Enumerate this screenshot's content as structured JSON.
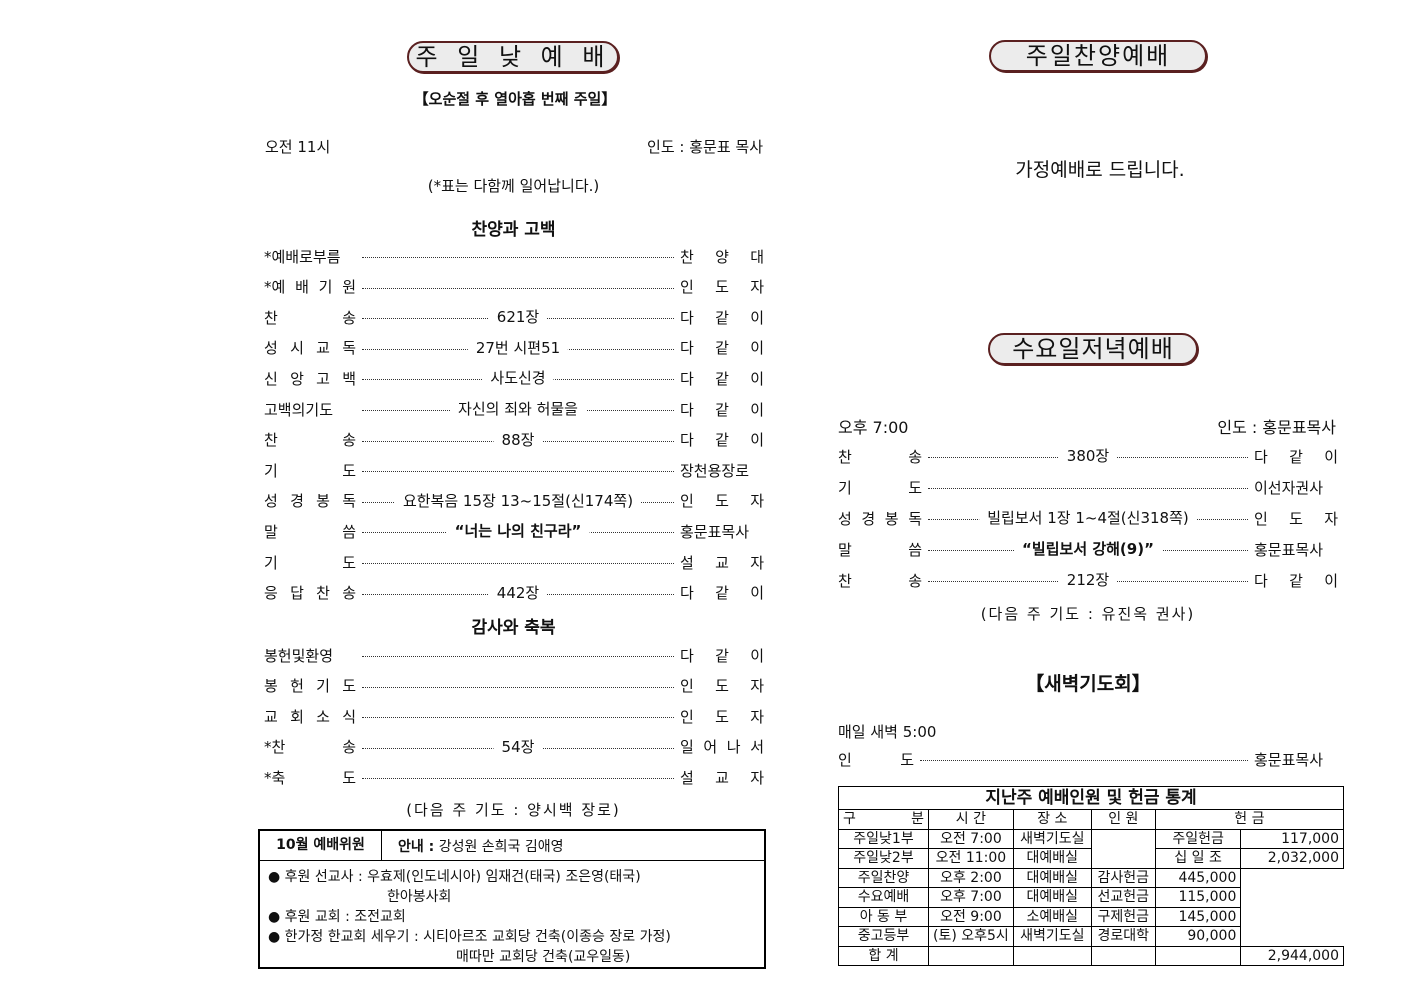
{
  "sunday": {
    "title": "주 일 낮 예 배",
    "subtitle": "【오순절 후 열아홉 번째 주일】",
    "time": "오전  11시",
    "leader": "인도 : 홍문표 목사",
    "note": "(*표는 다함께 일어납니다.)",
    "section1": "찬양과 고백",
    "items1": [
      {
        "label": "*예배로부름",
        "center": "",
        "who": "찬 양 대"
      },
      {
        "label": "*예 배 기 원",
        "center": "",
        "who": "인 도 자"
      },
      {
        "label": "찬 송",
        "center": "621장",
        "who": "다 같 이"
      },
      {
        "label": "성 시 교 독",
        "center": "27번  시편51",
        "who": "다 같 이"
      },
      {
        "label": "신 앙 고 백",
        "center": "사도신경",
        "who": "다 같 이"
      },
      {
        "label": "고백의기도",
        "center": "자신의 죄와 허물을",
        "who": "다 같 이"
      },
      {
        "label": "찬 송",
        "center": "88장",
        "who": "다 같 이"
      },
      {
        "label": "기 도",
        "center": "",
        "who": "장천용장로"
      },
      {
        "label": "성 경 봉 독",
        "center": "요한복음 15장  13~15절(신174쪽)",
        "who": "인 도 자"
      },
      {
        "label": "말 씀",
        "center": "“너는 나의 친구라”",
        "who": "홍문표목사"
      },
      {
        "label": "기 도",
        "center": "",
        "who": "설 교 자"
      },
      {
        "label": "응 답 찬 송",
        "center": "442장",
        "who": "다 같 이"
      }
    ],
    "section2": "감사와 축복",
    "items2": [
      {
        "label": "봉헌및환영",
        "center": "",
        "who": "다 같 이"
      },
      {
        "label": "봉 헌 기 도",
        "center": "",
        "who": "인 도 자"
      },
      {
        "label": "교 회 소 식",
        "center": "",
        "who": "인 도 자"
      },
      {
        "label": "*찬 송",
        "center": "54장",
        "who": "일 어 나 서"
      },
      {
        "label": "*축 도",
        "center": "",
        "who": "설 교 자"
      }
    ],
    "next_prayer": "(다음 주 기도 : 양시백 장로)"
  },
  "notice": {
    "committee_label": "10월 예배위원",
    "guide_label": "안내 :",
    "guide_names": "강성원 손희국 김애영",
    "lines": [
      "후원 선교사 : 우효제(인도네시아)  임재건(태국)  조은영(태국)",
      "한아봉사회",
      "후원 교회  : 조전교회",
      "한가정 한교회 세우기 : 시티아르조 교회당 건축(이종승 장로 가정)",
      "매따만 교회당 건축(교우일동)"
    ]
  },
  "praise": {
    "title": "주일찬양예배",
    "message": "가정예배로 드립니다."
  },
  "wednesday": {
    "title": "수요일저녁예배",
    "time": "오후 7:00",
    "leader": "인도 : 홍문표목사",
    "items": [
      {
        "label": "찬 송",
        "center": "380장",
        "who": "다 같 이"
      },
      {
        "label": "기 도",
        "center": "",
        "who": "이선자권사"
      },
      {
        "label": "성 경 봉 독",
        "center": "빌립보서 1장  1~4절(신318쪽)",
        "who": "인 도 자"
      },
      {
        "label": "말 씀",
        "center": "“빌립보서 강해(9)”",
        "who": "홍문표목사"
      },
      {
        "label": "찬 송",
        "center": "212장",
        "who": "다 같 이"
      }
    ],
    "next_prayer": "(다음 주 기도 : 유진옥 권사)"
  },
  "dawn": {
    "title": "【새벽기도회】",
    "time": "매일  새벽  5:00",
    "label": "인 도",
    "who": "홍문표목사"
  },
  "stats": {
    "title": "지난주 예배인원 및 헌금 통계",
    "headers": [
      "구 분",
      "시 간",
      "장 소",
      "인 원",
      "헌 금"
    ],
    "rows": [
      [
        "주일낮1부",
        "오전 7:00",
        "새벽기도실",
        "",
        "주일헌금",
        "117,000"
      ],
      [
        "주일낮2부",
        "오전 11:00",
        "대예배실",
        "",
        "십 일 조",
        "2,032,000"
      ],
      [
        "주일찬양",
        "오후 2:00",
        "대예배실",
        "",
        "감사헌금",
        "445,000"
      ],
      [
        "수요예배",
        "오후 7:00",
        "대예배실",
        "",
        "선교헌금",
        "115,000"
      ],
      [
        "아 동 부",
        "오전 9:00",
        "소예배실",
        "",
        "구제헌금",
        "145,000"
      ],
      [
        "중고등부",
        "(토) 오후5시",
        "새벽기도실",
        "",
        "경로대학",
        "90,000"
      ],
      [
        "합 계",
        "",
        "",
        "",
        "",
        "2,944,000"
      ]
    ]
  },
  "colors": {
    "pill_border": "#5a2020",
    "pill_fill": "#ececec"
  }
}
